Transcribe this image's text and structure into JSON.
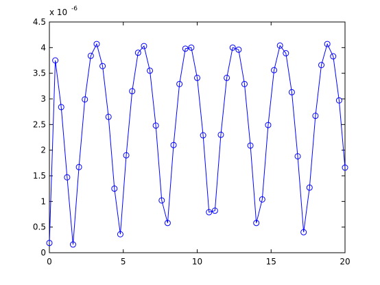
{
  "chart_data": {
    "type": "line",
    "axis_multiplier": "x 10",
    "axis_multiplier_exponent": "-6",
    "x": [
      0,
      0.4,
      0.8,
      1.2,
      1.6,
      2.0,
      2.4,
      2.8,
      3.2,
      3.6,
      4.0,
      4.4,
      4.8,
      5.2,
      5.6,
      6.0,
      6.4,
      6.8,
      7.2,
      7.6,
      8.0,
      8.4,
      8.8,
      9.2,
      9.6,
      10.0,
      10.4,
      10.8,
      11.2,
      11.6,
      12.0,
      12.4,
      12.8,
      13.2,
      13.6,
      14.0,
      14.4,
      14.8,
      15.2,
      15.6,
      16.0,
      16.4,
      16.8,
      17.2,
      17.6,
      18.0,
      18.4,
      18.8,
      19.2,
      19.6,
      20.0
    ],
    "series": [
      {
        "color": "#0000ff",
        "marker": "circle",
        "values": [
          0.19,
          3.75,
          2.84,
          1.47,
          0.16,
          1.67,
          2.99,
          3.84,
          4.07,
          3.64,
          2.65,
          1.25,
          0.36,
          1.9,
          3.15,
          3.9,
          4.03,
          3.55,
          2.48,
          1.02,
          0.58,
          2.1,
          3.29,
          3.98,
          4.0,
          3.41,
          2.29,
          0.79,
          0.82,
          2.3,
          3.41,
          4.0,
          3.96,
          3.29,
          2.09,
          0.58,
          1.04,
          2.49,
          3.56,
          4.04,
          3.89,
          3.13,
          1.88,
          0.4,
          1.27,
          2.67,
          3.66,
          4.07,
          3.83,
          2.97,
          1.66
        ]
      }
    ],
    "xlim": [
      0,
      20
    ],
    "xticks": [
      0,
      5,
      10,
      15,
      20
    ],
    "ylim": [
      0,
      4.5
    ],
    "yticks": [
      0,
      0.5,
      1,
      1.5,
      2,
      2.5,
      3,
      3.5,
      4,
      4.5
    ],
    "grid": false
  }
}
